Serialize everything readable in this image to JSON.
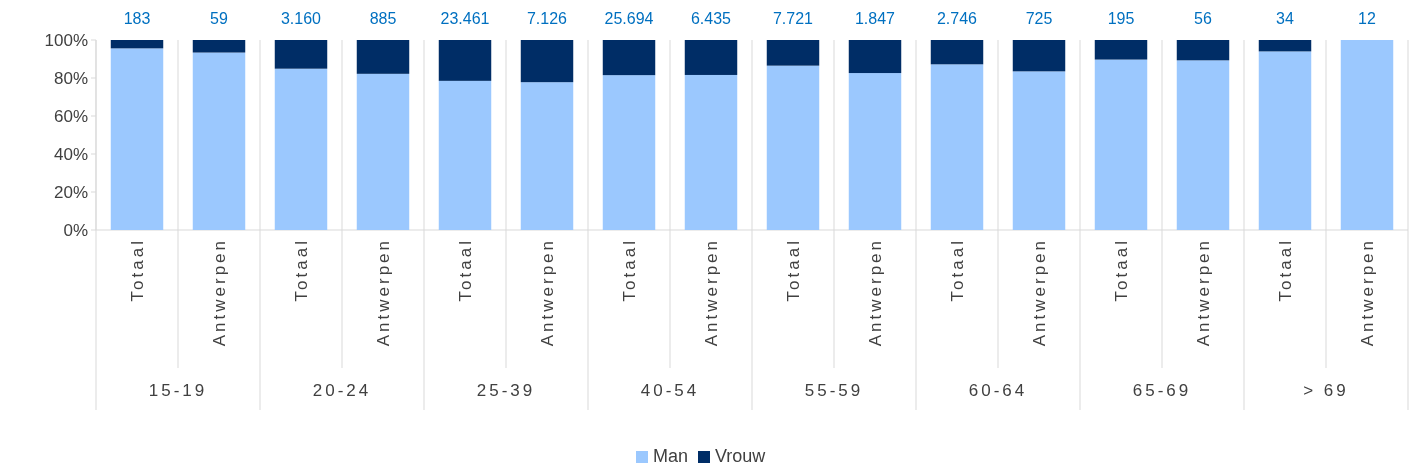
{
  "chart_data": {
    "type": "bar",
    "stacked": true,
    "categories": [
      "Totaal",
      "Antwerpen",
      "Totaal",
      "Antwerpen",
      "Totaal",
      "Antwerpen",
      "Totaal",
      "Antwerpen",
      "Totaal",
      "Antwerpen",
      "Totaal",
      "Antwerpen",
      "Totaal",
      "Antwerpen",
      "Totaal",
      "Antwerpen"
    ],
    "series": [
      {
        "name": "Man",
        "color": "#9bc8fe",
        "values": [
          95.6,
          93.4,
          84.9,
          82.2,
          78.5,
          77.8,
          81.5,
          81.6,
          86.5,
          82.6,
          87.2,
          83.5,
          89.7,
          89.3,
          94,
          100
        ]
      },
      {
        "name": "Vrouw",
        "color": "#002d66",
        "values": [
          4.4,
          6.6,
          15.1,
          17.8,
          21.5,
          22.2,
          18.5,
          18.4,
          13.5,
          17.4,
          12.8,
          16.5,
          10.3,
          10.7,
          6,
          0
        ]
      }
    ],
    "ylim": [
      0,
      100
    ],
    "yticks": [
      {
        "value": 0,
        "label": "0%"
      },
      {
        "value": 20,
        "label": "20%"
      },
      {
        "value": 40,
        "label": "40%"
      },
      {
        "value": 60,
        "label": "60%"
      },
      {
        "value": 80,
        "label": "80%"
      },
      {
        "value": 100,
        "label": "100%"
      }
    ],
    "annotations": [
      "183",
      "59",
      "3.160",
      "885",
      "23.461",
      "7.126",
      "25.694",
      "6.435",
      "7.721",
      "1.847",
      "2.746",
      "725",
      "195",
      "56",
      "34",
      "12",
      "15-19",
      "20-24",
      "25-39",
      "40-54",
      "55-59",
      "60-64",
      "65-69",
      "> 69"
    ],
    "legend": "bottom"
  }
}
